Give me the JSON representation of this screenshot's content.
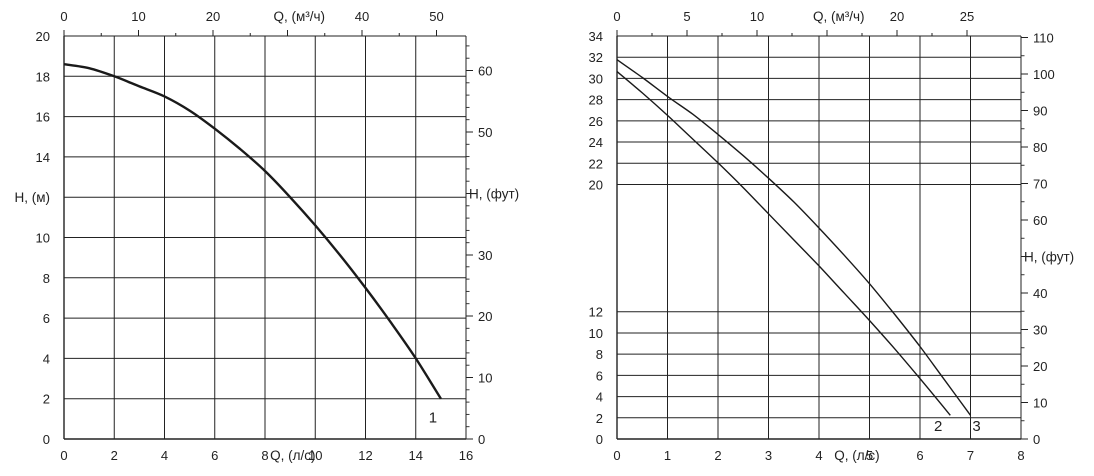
{
  "chart_data": [
    {
      "type": "line",
      "title": "",
      "xlabel": "Q, (л/с)",
      "x2label": "Q, (м³/ч)",
      "ylabel": "H, (м)",
      "y2label": "H, (фут)",
      "xlim": [
        0,
        16
      ],
      "ylim": [
        0,
        20
      ],
      "x2lim": [
        0,
        57.6
      ],
      "y2lim": [
        0,
        65.6
      ],
      "x_ticks": [
        "0",
        "2",
        "4",
        "6",
        "8",
        "10",
        "12",
        "14",
        "16"
      ],
      "y_ticks": [
        "0",
        "2",
        "4",
        "6",
        "8",
        "10",
        "H, (м)",
        "14",
        "16",
        "18",
        "20"
      ],
      "x2_ticks": [
        "0",
        "10",
        "20",
        "Q, (м³/ч)",
        "40",
        "50"
      ],
      "y2_ticks": [
        "0",
        "10",
        "20",
        "30",
        "H, (фут)",
        "50",
        "60"
      ],
      "grid": true,
      "series": [
        {
          "name": "1",
          "x": [
            0,
            1,
            2,
            3,
            4,
            5,
            6,
            7,
            8,
            9,
            10,
            11,
            12,
            13,
            14,
            15
          ],
          "y": [
            18.6,
            18.4,
            18.0,
            17.5,
            17.0,
            16.3,
            15.4,
            14.4,
            13.3,
            12.0,
            10.6,
            9.1,
            7.5,
            5.8,
            4.0,
            2.0
          ]
        }
      ]
    },
    {
      "type": "line",
      "title": "",
      "xlabel": "Q, (л/с)",
      "x2label": "Q, (м³/ч)",
      "ylabel": "H, (м)",
      "y2label": "H, (фут)",
      "xlim": [
        0,
        8
      ],
      "ylim": [
        0,
        34
      ],
      "x2lim": [
        0,
        28.8
      ],
      "y2lim": [
        0,
        111.5
      ],
      "x_ticks": [
        "0",
        "1",
        "2",
        "3",
        "4",
        "5",
        "6",
        "7",
        "8"
      ],
      "y_ticks": [
        "0",
        "2",
        "4",
        "6",
        "8",
        "10",
        "12",
        "",
        "",
        "",
        "",
        "",
        "20",
        "22",
        "24",
        "26",
        "28",
        "30",
        "32",
        "34"
      ],
      "x2_ticks": [
        "0",
        "5",
        "10",
        "Q, (м³/ч)",
        "20",
        "25"
      ],
      "y2_ticks": [
        "0",
        "10",
        "20",
        "30",
        "40",
        "H, (фут)",
        "60",
        "70",
        "80",
        "90",
        "100",
        "110"
      ],
      "grid": true,
      "series": [
        {
          "name": "2",
          "x": [
            0,
            0.5,
            1,
            1.5,
            2,
            2.5,
            3,
            3.5,
            4,
            4.5,
            5,
            5.5,
            6,
            6.6
          ],
          "y": [
            31.0,
            29.2,
            27.3,
            25.3,
            23.3,
            21.2,
            19.0,
            16.8,
            14.6,
            12.3,
            10.0,
            7.6,
            5.1,
            2.0
          ]
        },
        {
          "name": "3",
          "x": [
            0,
            0.5,
            1,
            1.5,
            2,
            2.5,
            3,
            3.5,
            4,
            4.5,
            5,
            5.5,
            6,
            6.5,
            7
          ],
          "y": [
            32.0,
            30.5,
            28.9,
            27.4,
            25.7,
            23.9,
            22.0,
            20.0,
            17.8,
            15.5,
            13.1,
            10.5,
            7.8,
            4.9,
            2.0
          ]
        }
      ]
    }
  ]
}
